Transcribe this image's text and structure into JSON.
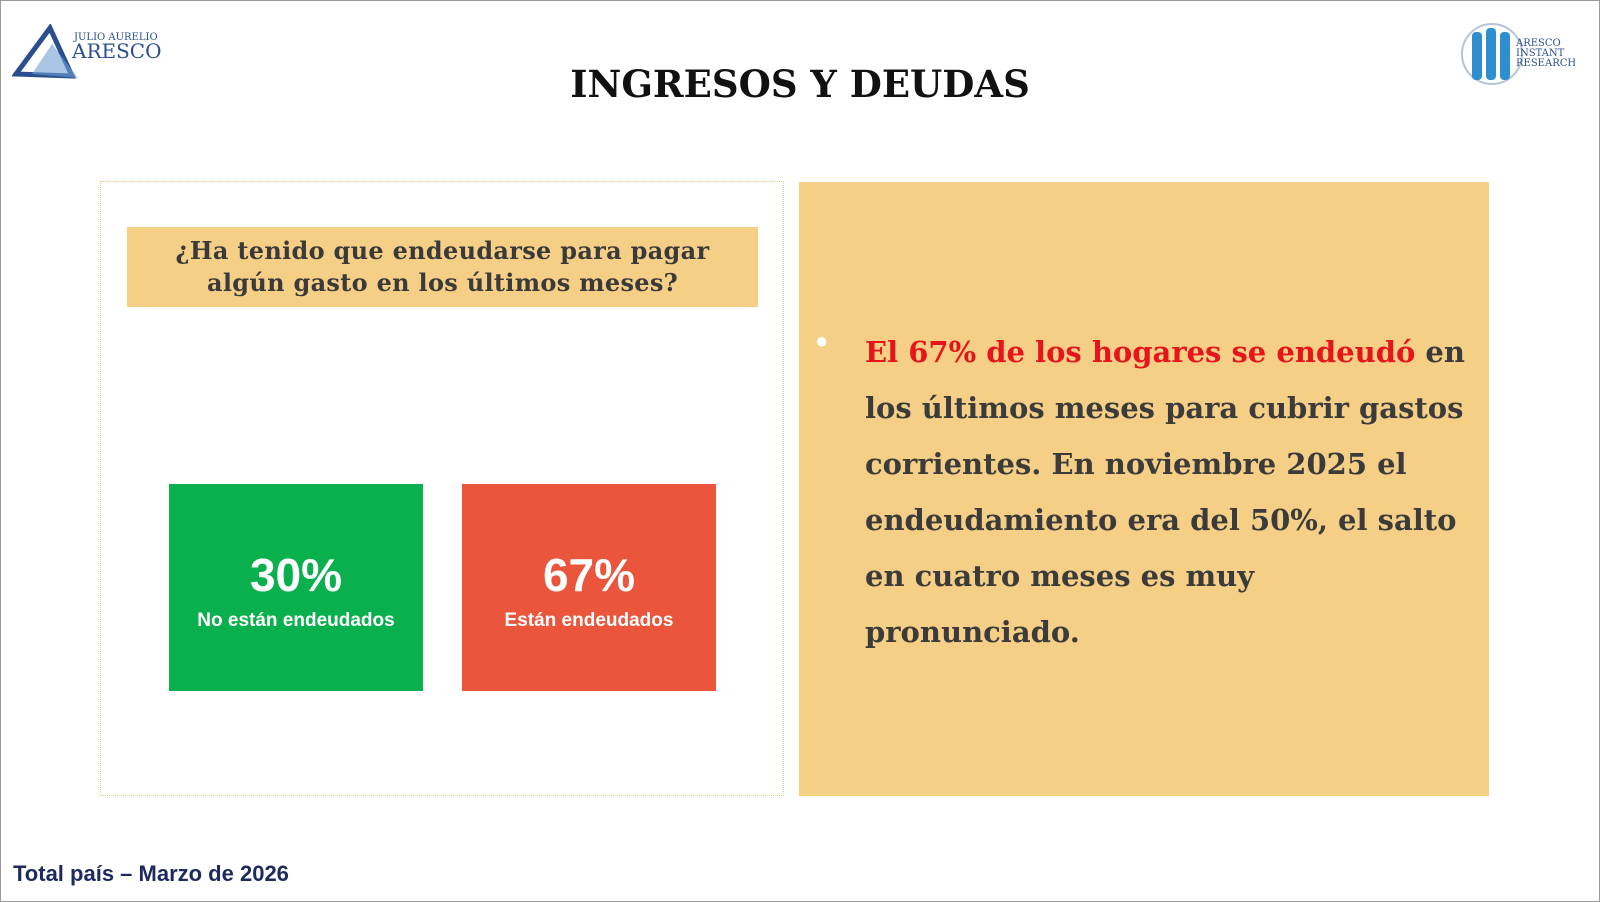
{
  "header": {
    "title": "INGRESOS Y DEUDAS",
    "logo_left": {
      "small": "JULIO AURELIO",
      "big": "ARESCO"
    },
    "logo_right": {
      "lines": [
        "ARESCO",
        "INSTANT",
        "RESEARCH"
      ]
    }
  },
  "question": "¿Ha tenido que endeudarse para pagar algún gasto en los últimos meses?",
  "tiles": [
    {
      "value": "30%",
      "label": "No están endeudados",
      "color": "#0bb04e"
    },
    {
      "value": "67%",
      "label": "Están endeudados",
      "color": "#eb553b"
    }
  ],
  "bullet": {
    "highlight": "El 67% de los hogares se endeudó",
    "text": " en los últimos meses para cubrir gastos corrientes. En noviembre 2025 el endeudamiento era del 50%, el salto en cuatro meses es muy pronunciado."
  },
  "footer": "Total país – Marzo de 2026"
}
